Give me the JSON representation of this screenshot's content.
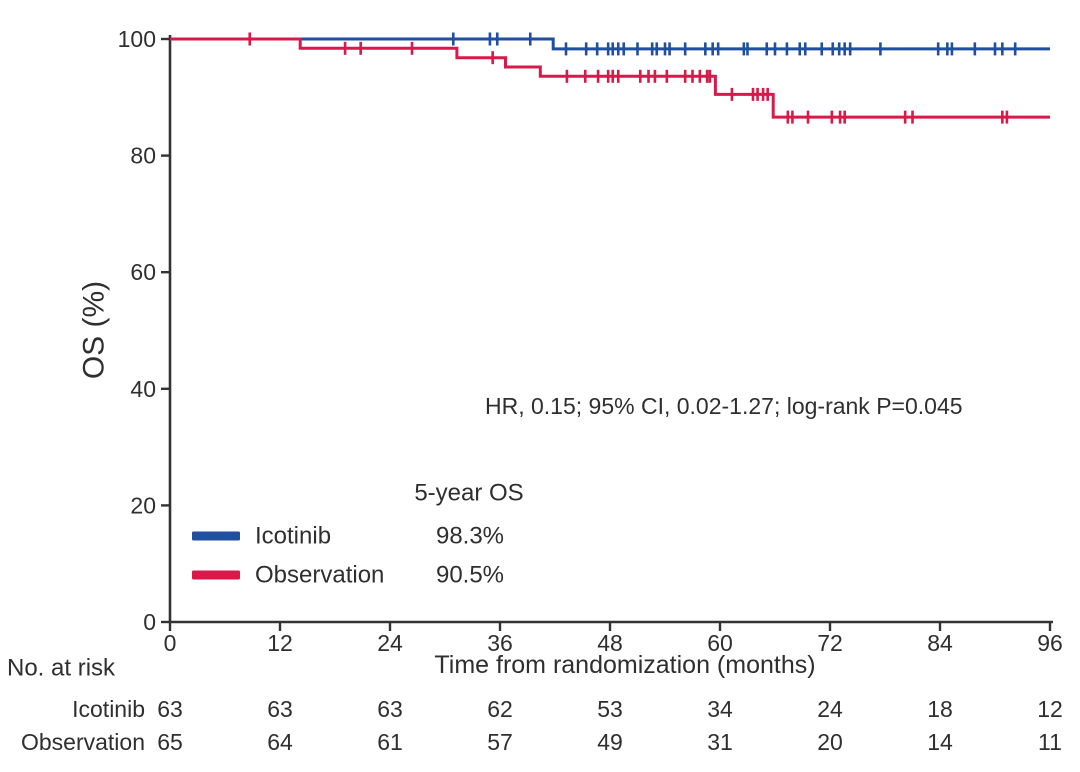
{
  "figure": {
    "background": "#ffffff",
    "text_color": "#2f2f2f",
    "axis_color": "#333333"
  },
  "chart_data": {
    "type": "line",
    "subtype": "kaplan-meier-step",
    "title": "",
    "xlabel": "Time from randomization (months)",
    "ylabel": "OS (%)",
    "xlim": [
      0,
      96
    ],
    "ylim": [
      0,
      100
    ],
    "xticks": [
      0,
      12,
      24,
      36,
      48,
      60,
      72,
      84,
      96
    ],
    "yticks": [
      0,
      20,
      40,
      60,
      80,
      100
    ],
    "grid": false,
    "legend_position": "lower-left-inside",
    "annotation": "HR, 0.15; 95% CI, 0.02-1.27; log-rank P=0.045",
    "legend": {
      "header": "5-year OS",
      "entries": [
        {
          "name": "Icotinib",
          "value": "98.3%",
          "color": "#1f4f9e"
        },
        {
          "name": "Observation",
          "value": "90.5%",
          "color": "#d8194a"
        }
      ]
    },
    "series": [
      {
        "name": "Icotinib",
        "color": "#1f4f9e",
        "steps": [
          [
            0,
            100
          ],
          [
            41.8,
            100
          ],
          [
            41.8,
            98.3
          ],
          [
            96,
            98.3
          ]
        ],
        "censors": [
          30.9,
          34.9,
          35.7,
          39.3,
          43.2,
          45.4,
          46.6,
          47.8,
          48.3,
          48.9,
          49.5,
          51.0,
          52.6,
          53.1,
          54.0,
          54.5,
          56.2,
          58.4,
          59.2,
          59.8,
          62.6,
          63.0,
          65.1,
          66.0,
          67.3,
          68.7,
          69.3,
          71.1,
          72.3,
          73.0,
          73.6,
          74.2,
          77.5,
          83.8,
          84.8,
          85.3,
          87.8,
          90.0,
          90.8,
          92.2
        ]
      },
      {
        "name": "Observation",
        "color": "#d8194a",
        "steps": [
          [
            0,
            100
          ],
          [
            14.2,
            100
          ],
          [
            14.2,
            98.4
          ],
          [
            31.3,
            98.4
          ],
          [
            31.3,
            96.8
          ],
          [
            36.6,
            96.8
          ],
          [
            36.6,
            95.2
          ],
          [
            40.4,
            95.2
          ],
          [
            40.4,
            93.6
          ],
          [
            59.5,
            93.6
          ],
          [
            59.5,
            90.5
          ],
          [
            65.8,
            90.5
          ],
          [
            65.8,
            86.6
          ],
          [
            96,
            86.6
          ]
        ],
        "censors": [
          8.7,
          19.1,
          20.8,
          26.4,
          35.2,
          43.3,
          45.3,
          46.7,
          47.8,
          48.3,
          48.9,
          51.3,
          52.2,
          52.9,
          54.2,
          56.2,
          57.0,
          57.8,
          58.6,
          58.9,
          61.3,
          63.6,
          64.1,
          64.7,
          65.2,
          67.4,
          67.9,
          69.6,
          72.2,
          73.1,
          73.6,
          80.2,
          81.0,
          90.8,
          91.3
        ]
      }
    ],
    "at_risk": {
      "title": "No. at risk",
      "times": [
        0,
        12,
        24,
        36,
        48,
        60,
        72,
        84,
        96
      ],
      "rows": [
        {
          "name": "Icotinib",
          "counts": [
            63,
            63,
            63,
            62,
            53,
            34,
            24,
            18,
            12
          ]
        },
        {
          "name": "Observation",
          "counts": [
            65,
            64,
            61,
            57,
            49,
            31,
            20,
            14,
            11
          ]
        }
      ]
    }
  }
}
